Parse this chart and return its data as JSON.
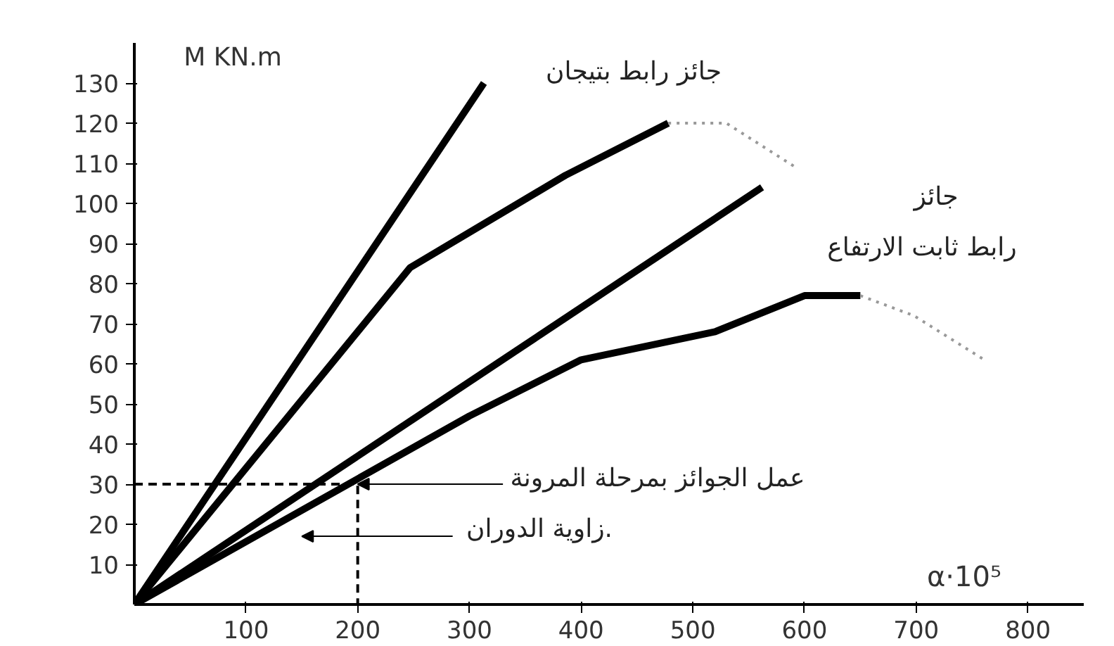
{
  "chart_data": {
    "type": "line",
    "xlabel": "α·10⁵",
    "ylabel": "M KN.m",
    "xlim": [
      0,
      850
    ],
    "ylim": [
      0,
      140
    ],
    "xticks": [
      100,
      200,
      300,
      400,
      500,
      600,
      700,
      800
    ],
    "yticks": [
      10,
      20,
      30,
      40,
      50,
      60,
      70,
      80,
      90,
      100,
      110,
      120,
      130
    ],
    "grid": false,
    "marker": "none",
    "series": [
      {
        "color": "#000000",
        "x": [
          0,
          313
        ],
        "values": [
          0,
          130
        ],
        "line_style": "solid"
      },
      {
        "color": "#000000",
        "x": [
          0,
          247,
          386,
          478
        ],
        "values": [
          0,
          84,
          107,
          120
        ],
        "line_style": "solid"
      },
      {
        "color": "#000000",
        "x": [
          0,
          562
        ],
        "values": [
          0,
          104
        ],
        "line_style": "solid"
      },
      {
        "color": "#000000",
        "x": [
          0,
          300,
          400,
          520,
          600,
          650
        ],
        "values": [
          0,
          47,
          61,
          68,
          77,
          77
        ],
        "line_style": "solid"
      },
      {
        "color": "#999999",
        "x": [
          478,
          530,
          592
        ],
        "values": [
          120,
          120,
          109
        ],
        "line_style": "dotted"
      },
      {
        "color": "#999999",
        "x": [
          650,
          698,
          761
        ],
        "values": [
          77,
          72,
          61
        ],
        "line_style": "dotted"
      },
      {
        "color": "#000000",
        "x": [
          0,
          200,
          200
        ],
        "values": [
          30,
          30,
          0
        ],
        "line_style": "dashed"
      }
    ],
    "annotations": [
      "جائز رابط بتيجان",
      "جائز",
      "رابط ثابت الارتفاع",
      {
        "text": "عمل الجوائز بمرحلة المرونة",
        "x": 200,
        "y": 30
      },
      "زاوية الدوران."
    ]
  }
}
